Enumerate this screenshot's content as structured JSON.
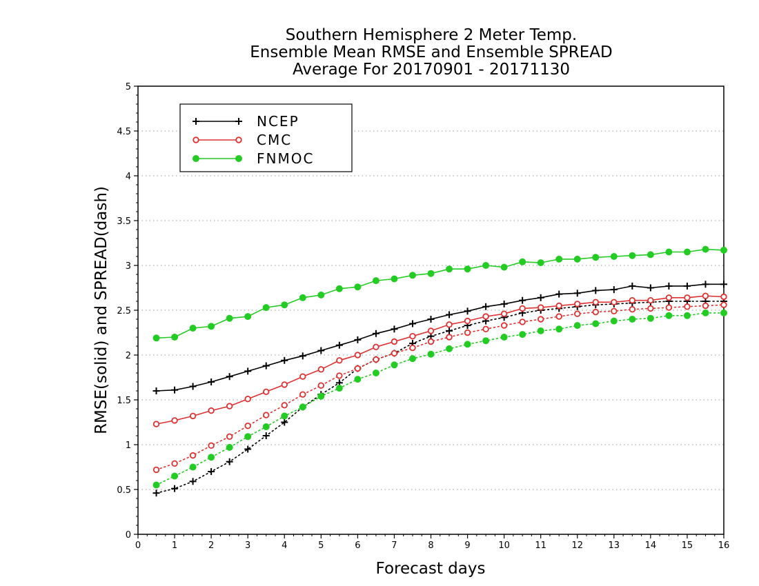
{
  "chart_data": {
    "type": "line",
    "title": [
      "Southern Hemisphere 2 Meter Temp.",
      "Ensemble Mean RMSE and Ensemble SPREAD",
      "Average For 20170901 - 20171130"
    ],
    "xlabel": "Forecast days",
    "ylabel": "RMSE(solid) and SPREAD(dash)",
    "xlim": [
      0,
      16
    ],
    "ylim": [
      0,
      5
    ],
    "xticks": [
      "0",
      "1",
      "2",
      "3",
      "4",
      "5",
      "6",
      "7",
      "8",
      "9",
      "10",
      "11",
      "12",
      "13",
      "14",
      "15",
      "16"
    ],
    "yticks": [
      "0",
      "0.5",
      "1",
      "1.5",
      "2",
      "2.5",
      "3",
      "3.5",
      "4",
      "4.5",
      "5"
    ],
    "grid": "horizontal dotted",
    "legend_position": "top-left",
    "x": [
      0.5,
      1,
      1.5,
      2,
      2.5,
      3,
      3.5,
      4,
      4.5,
      5,
      5.5,
      6,
      6.5,
      7,
      7.5,
      8,
      8.5,
      9,
      9.5,
      10,
      10.5,
      11,
      11.5,
      12,
      12.5,
      13,
      13.5,
      14,
      14.5,
      15,
      15.5,
      16
    ],
    "series": [
      {
        "name": "NCEP",
        "color": "#000000",
        "marker": "plus",
        "rmse": [
          1.6,
          1.61,
          1.65,
          1.7,
          1.76,
          1.82,
          1.88,
          1.94,
          1.99,
          2.05,
          2.11,
          2.17,
          2.24,
          2.29,
          2.35,
          2.4,
          2.45,
          2.49,
          2.54,
          2.57,
          2.61,
          2.64,
          2.68,
          2.69,
          2.72,
          2.73,
          2.77,
          2.75,
          2.77,
          2.77,
          2.79,
          2.79
        ],
        "spread": [
          0.46,
          0.51,
          0.59,
          0.7,
          0.81,
          0.95,
          1.1,
          1.25,
          1.42,
          1.56,
          1.69,
          1.85,
          1.95,
          2.02,
          2.13,
          2.21,
          2.27,
          2.33,
          2.38,
          2.42,
          2.47,
          2.5,
          2.52,
          2.54,
          2.56,
          2.57,
          2.58,
          2.59,
          2.6,
          2.6,
          2.6,
          2.6
        ]
      },
      {
        "name": "CMC",
        "color": "#e03030",
        "marker": "open-circle",
        "rmse": [
          1.23,
          1.27,
          1.32,
          1.38,
          1.43,
          1.51,
          1.59,
          1.67,
          1.76,
          1.84,
          1.94,
          2.0,
          2.09,
          2.15,
          2.21,
          2.27,
          2.34,
          2.38,
          2.43,
          2.46,
          2.52,
          2.53,
          2.55,
          2.57,
          2.59,
          2.59,
          2.61,
          2.61,
          2.64,
          2.64,
          2.66,
          2.65
        ],
        "spread": [
          0.72,
          0.79,
          0.88,
          0.99,
          1.09,
          1.21,
          1.33,
          1.44,
          1.56,
          1.66,
          1.77,
          1.85,
          1.95,
          2.02,
          2.08,
          2.15,
          2.2,
          2.25,
          2.29,
          2.33,
          2.37,
          2.4,
          2.43,
          2.46,
          2.48,
          2.49,
          2.51,
          2.52,
          2.53,
          2.54,
          2.55,
          2.56
        ]
      },
      {
        "name": "FNMOC",
        "color": "#22cc22",
        "marker": "filled-circle",
        "rmse": [
          2.19,
          2.2,
          2.3,
          2.32,
          2.41,
          2.43,
          2.53,
          2.56,
          2.64,
          2.67,
          2.74,
          2.76,
          2.83,
          2.85,
          2.89,
          2.91,
          2.96,
          2.96,
          3.0,
          2.98,
          3.04,
          3.03,
          3.07,
          3.07,
          3.09,
          3.1,
          3.11,
          3.12,
          3.15,
          3.15,
          3.18,
          3.17
        ],
        "spread": [
          0.55,
          0.65,
          0.75,
          0.86,
          0.97,
          1.09,
          1.2,
          1.32,
          1.42,
          1.54,
          1.63,
          1.73,
          1.8,
          1.89,
          1.96,
          2.01,
          2.07,
          2.12,
          2.16,
          2.2,
          2.23,
          2.27,
          2.29,
          2.33,
          2.35,
          2.38,
          2.4,
          2.41,
          2.44,
          2.44,
          2.47,
          2.47
        ]
      }
    ]
  }
}
